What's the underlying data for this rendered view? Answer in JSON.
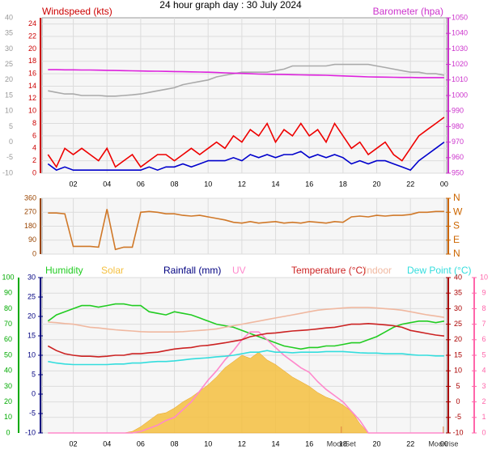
{
  "chart_data": [
    {
      "type": "line",
      "title": "24 hour graph day : 30 July 2024",
      "ylabel": "Windspeed (kts)",
      "y2label": "Barometer (hpa)",
      "x": [
        0.5,
        1,
        1.5,
        2,
        2.5,
        3,
        3.5,
        4,
        4.5,
        5,
        5.5,
        6,
        6.5,
        7,
        7.5,
        8,
        8.5,
        9,
        9.5,
        10,
        10.5,
        11,
        11.5,
        12,
        12.5,
        13,
        13.5,
        14,
        14.5,
        15,
        15.5,
        16,
        16.5,
        17,
        17.5,
        18,
        18.5,
        19,
        19.5,
        20,
        20.5,
        21,
        21.5,
        22,
        22.5,
        23,
        23.5,
        24
      ],
      "xlim": [
        0.15,
        24.15
      ],
      "xticks": [
        {
          "value": 2,
          "label": "02"
        },
        {
          "value": 4,
          "label": "04"
        },
        {
          "value": 6,
          "label": "06"
        },
        {
          "value": 8,
          "label": "08"
        },
        10,
        12,
        14,
        16,
        18,
        20,
        22,
        {
          "value": 24,
          "label": "00"
        }
      ],
      "ylim": [
        0,
        25
      ],
      "yticks": [
        0,
        2,
        4,
        6,
        8,
        10,
        12,
        14,
        16,
        18,
        20,
        22,
        24
      ],
      "y2lim": [
        950,
        1050
      ],
      "y2ticks": [
        950,
        960,
        970,
        980,
        990,
        1000,
        1010,
        1020,
        1030,
        1040,
        1050
      ],
      "y3lim": [
        -10,
        40
      ],
      "y3ticks": [
        -10,
        -5,
        0,
        5,
        10,
        15,
        20,
        25,
        30,
        35,
        40
      ],
      "axis_colors": {
        "y": "#cc0000",
        "y2": "#cc33cc",
        "y3": "#999999"
      },
      "grid": true,
      "series": [
        {
          "color": "#aaaaaa",
          "axis": "y3",
          "values": [
            16.5,
            16,
            15.5,
            15.5,
            15,
            15,
            15,
            14.8,
            14.8,
            15,
            15.2,
            15.5,
            16,
            16.5,
            17,
            17.5,
            18.5,
            19,
            19.5,
            20,
            21,
            21.5,
            22,
            22.5,
            22.5,
            22.5,
            22.5,
            23,
            23.5,
            24.5,
            24.5,
            24.5,
            24.5,
            24.5,
            25,
            25,
            25,
            25,
            25,
            24.5,
            24,
            23.5,
            23,
            22.5,
            22.5,
            22,
            22,
            21.5
          ]
        },
        {
          "color": "#dd22dd",
          "axis": "y2",
          "values": [
            1016.6,
            1016.6,
            1016.5,
            1016.5,
            1016.4,
            1016.4,
            1016.3,
            1016.2,
            1016.1,
            1016.0,
            1015.9,
            1015.8,
            1015.7,
            1015.6,
            1015.5,
            1015.4,
            1015.3,
            1015.2,
            1015.1,
            1015.0,
            1014.8,
            1014.6,
            1014.4,
            1014.2,
            1014.0,
            1013.8,
            1013.7,
            1013.6,
            1013.5,
            1013.4,
            1013.3,
            1013.2,
            1013.1,
            1013.0,
            1012.8,
            1012.6,
            1012.4,
            1012.2,
            1012.0,
            1011.9,
            1011.8,
            1011.7,
            1011.6,
            1011.6,
            1011.5,
            1011.5,
            1011.5,
            1011.5
          ]
        },
        {
          "color": "#ee0000",
          "axis": "y",
          "values": [
            3,
            1,
            4,
            3,
            4,
            3,
            2,
            4,
            1,
            2,
            3,
            1,
            2,
            3,
            3,
            2,
            3,
            4,
            3,
            4,
            5,
            4,
            6,
            5,
            7,
            6,
            8,
            5,
            7,
            6,
            8,
            6,
            7,
            5,
            8,
            6,
            4,
            5,
            3,
            4,
            5,
            3,
            2,
            4,
            6,
            7,
            8,
            9
          ]
        },
        {
          "color": "#0000cc",
          "axis": "y",
          "values": [
            1.5,
            0.5,
            1,
            0.5,
            0.5,
            0.5,
            0.5,
            0.5,
            0.5,
            0.5,
            0.5,
            0.5,
            1,
            0.5,
            1,
            1,
            1.5,
            1,
            1.5,
            2,
            2,
            2,
            2.5,
            2,
            3,
            2.5,
            3,
            2.5,
            3,
            3,
            3.5,
            2.5,
            3,
            2.5,
            3,
            2.5,
            1.5,
            2,
            1.5,
            2,
            2,
            1.5,
            1,
            0.5,
            2,
            3,
            4,
            5
          ]
        }
      ]
    },
    {
      "type": "line",
      "x": [
        0.5,
        1,
        1.5,
        2,
        2.5,
        3,
        3.5,
        4,
        4.5,
        5,
        5.5,
        6,
        6.5,
        7,
        7.5,
        8,
        8.5,
        9,
        9.5,
        10,
        10.5,
        11,
        11.5,
        12,
        12.5,
        13,
        13.5,
        14,
        14.5,
        15,
        15.5,
        16,
        16.5,
        17,
        17.5,
        18,
        18.5,
        19,
        19.5,
        20,
        20.5,
        21,
        21.5,
        22,
        22.5,
        23,
        23.5,
        24
      ],
      "xlim": [
        0.15,
        24.15
      ],
      "xticks": [
        2,
        4,
        6,
        8,
        10,
        12,
        14,
        16,
        18,
        20,
        22,
        24
      ],
      "ylim": [
        0,
        360
      ],
      "yticks": [
        0,
        90,
        180,
        270,
        360
      ],
      "y2lim": [
        0,
        360
      ],
      "y2ticks": [
        {
          "value": 0,
          "label": "N"
        },
        {
          "value": 90,
          "label": "E"
        },
        {
          "value": 180,
          "label": "S"
        },
        {
          "value": 270,
          "label": "W"
        },
        {
          "value": 360,
          "label": "N"
        }
      ],
      "axis_colors": {
        "y": "#994400",
        "y2": "#cc6600"
      },
      "grid": true,
      "series": [
        {
          "color": "#d07828",
          "axis": "y",
          "values": [
            265,
            265,
            260,
            50,
            50,
            50,
            45,
            290,
            30,
            45,
            45,
            270,
            275,
            270,
            260,
            260,
            250,
            245,
            250,
            240,
            230,
            220,
            205,
            200,
            210,
            200,
            205,
            210,
            200,
            205,
            200,
            210,
            205,
            200,
            210,
            205,
            240,
            245,
            240,
            250,
            245,
            250,
            250,
            255,
            270,
            270,
            275,
            275
          ]
        }
      ]
    },
    {
      "type": "line",
      "y3label": "Rainfall (mm)",
      "x": [
        0.5,
        1,
        1.5,
        2,
        2.5,
        3,
        3.5,
        4,
        4.5,
        5,
        5.5,
        6,
        6.5,
        7,
        7.5,
        8,
        8.5,
        9,
        9.5,
        10,
        10.5,
        11,
        11.5,
        12,
        12.5,
        13,
        13.5,
        14,
        14.5,
        15,
        15.5,
        16,
        16.5,
        17,
        17.5,
        18,
        18.5,
        19,
        19.5,
        20,
        20.5,
        21,
        21.5,
        22,
        22.5,
        23,
        23.5,
        24
      ],
      "xlim": [
        0.15,
        24.15
      ],
      "xticks": [
        {
          "value": 2,
          "label": "02"
        },
        {
          "value": 4,
          "label": "04"
        },
        {
          "value": 6,
          "label": "06"
        },
        {
          "value": 8,
          "label": "08"
        },
        10,
        12,
        14,
        16,
        18,
        20,
        22,
        {
          "value": 24,
          "label": "00"
        }
      ],
      "ylim": [
        0,
        100
      ],
      "yticks": [
        0,
        10,
        20,
        30,
        40,
        50,
        60,
        70,
        80,
        90,
        100
      ],
      "y2lim": [
        -10,
        40
      ],
      "y2ticks": [
        -10,
        -5,
        0,
        5,
        10,
        15,
        20,
        25,
        30,
        35,
        40
      ],
      "y3lim": [
        -10,
        30
      ],
      "y3ticks": [
        -10,
        -5,
        0,
        5,
        10,
        15,
        20,
        25,
        30
      ],
      "y4lim": [
        0,
        10
      ],
      "y4ticks": [
        0,
        1,
        2,
        3,
        4,
        5,
        6,
        7,
        8,
        9,
        10
      ],
      "axis_colors": {
        "y": "#00aa00",
        "y2": "#aa0000",
        "y3": "#000080",
        "y4": "#ff66aa"
      },
      "grid": true,
      "annotations": [
        {
          "text": "MoonSet",
          "x": 17.9
        },
        {
          "text": "Moonrise",
          "x": 23.95
        }
      ],
      "series": [
        {
          "name": "Humidity",
          "color": "#22cc22",
          "axis": "y",
          "values": [
            72,
            76,
            78,
            80,
            82,
            82,
            81,
            82,
            83,
            83,
            82,
            82,
            78,
            77,
            76,
            78,
            77,
            76,
            74,
            72,
            70,
            69,
            68,
            66,
            64,
            62,
            60,
            58,
            56,
            55,
            54,
            55,
            55,
            56,
            56,
            57,
            58,
            58,
            60,
            62,
            65,
            68,
            70,
            71,
            72,
            72,
            71,
            72
          ]
        },
        {
          "name": "Solar",
          "color": "#f5c040",
          "axis": "y",
          "fill": true,
          "values": [
            0,
            0,
            0,
            0,
            0,
            0,
            0,
            0,
            0,
            0,
            1,
            4,
            8,
            12,
            13,
            16,
            20,
            23,
            27,
            31,
            36,
            42,
            46,
            50,
            48,
            52,
            47,
            44,
            40,
            36,
            33,
            30,
            26,
            23,
            21,
            18,
            14,
            6,
            0,
            0,
            0,
            0,
            0,
            0,
            0,
            0,
            0,
            0
          ]
        },
        {
          "name": "UV",
          "color": "#ff88cc",
          "axis": "y4",
          "values": [
            0,
            0,
            0,
            0,
            0,
            0,
            0,
            0,
            0,
            0,
            0,
            0.1,
            0.3,
            0.5,
            0.8,
            1,
            1.5,
            2,
            2.7,
            3.4,
            4,
            4.7,
            5.3,
            6,
            6.5,
            6.5,
            6,
            5.5,
            5,
            4.6,
            4.2,
            3.9,
            3.3,
            2.8,
            2.4,
            2,
            1.4,
            0.8,
            0,
            0,
            0,
            0,
            0,
            0,
            0,
            0,
            0,
            0
          ]
        },
        {
          "name": "Temperature (°C)",
          "color": "#cc2222",
          "axis": "y2",
          "values": [
            18,
            16.5,
            15.5,
            15,
            14.7,
            14.7,
            14.5,
            14.7,
            15,
            15,
            15.5,
            15.5,
            15.8,
            16,
            16.5,
            17,
            17.3,
            17.5,
            18,
            18.2,
            18.6,
            19,
            19.5,
            20,
            21,
            21.5,
            22,
            22.2,
            22.5,
            22.8,
            23,
            23.2,
            23.5,
            23.8,
            24,
            24.5,
            25,
            25,
            25.2,
            25,
            24.8,
            24.5,
            24,
            23,
            22.5,
            22,
            21.5,
            21.2
          ]
        },
        {
          "name": "Indoor",
          "color": "#f0b8a0",
          "axis": "y2",
          "values": [
            25.7,
            25.5,
            25.2,
            25,
            24.5,
            24,
            23.8,
            23.5,
            23.2,
            23,
            22.8,
            22.6,
            22.5,
            22.5,
            22.5,
            22.5,
            22.6,
            22.8,
            23,
            23.2,
            23.5,
            24,
            24.5,
            25,
            25.5,
            26,
            26.5,
            27,
            27.5,
            28,
            28.5,
            29,
            29.5,
            29.8,
            30,
            30.2,
            30.4,
            30.4,
            30.4,
            30.2,
            30,
            29.8,
            29.5,
            29,
            28.5,
            28,
            27.6,
            27.2
          ]
        },
        {
          "name": "Dew Point (°C)",
          "color": "#33dddd",
          "axis": "y2",
          "values": [
            13,
            12.5,
            12.2,
            12,
            12,
            12,
            12,
            12,
            12.2,
            12.2,
            12.5,
            12.5,
            12.8,
            13,
            13,
            13.2,
            13.5,
            13.8,
            14,
            14.2,
            14.5,
            14.7,
            15,
            15.5,
            16,
            16,
            16.5,
            16,
            16,
            15.8,
            16,
            16,
            16,
            16.2,
            16.2,
            16.2,
            16,
            15.8,
            15.7,
            15.7,
            15.5,
            15.5,
            15.5,
            15.2,
            15,
            15,
            14.8,
            14.8
          ]
        }
      ]
    }
  ]
}
